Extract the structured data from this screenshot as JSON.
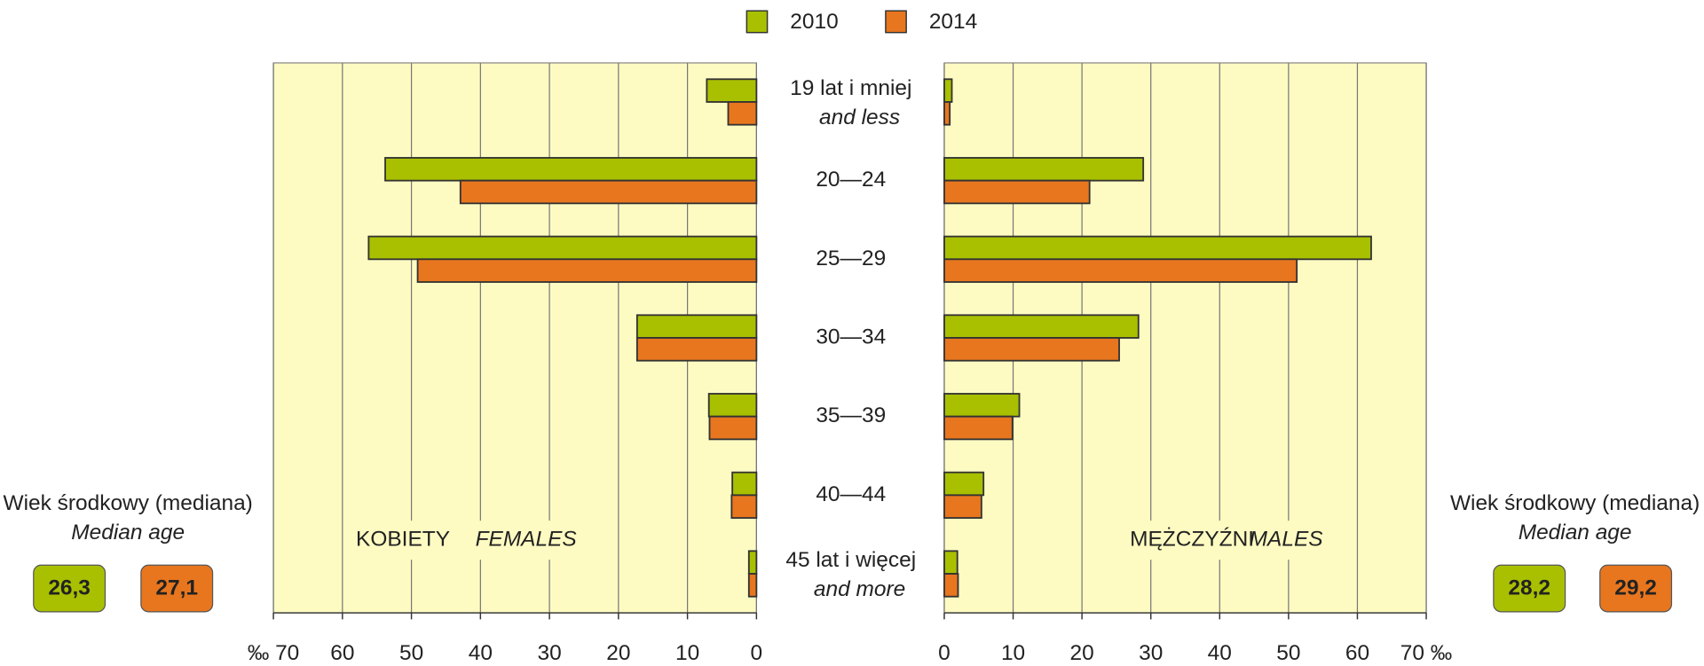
{
  "chart_data": [
    {
      "type": "bar",
      "orientation": "horizontal",
      "direction": "left",
      "label": "KOBIETY",
      "label_en": "FEMALES",
      "categories": [
        "19 lat i mniej",
        "20—24",
        "25—29",
        "30—34",
        "35—39",
        "40—44",
        "45 lat i więcej"
      ],
      "categories_en": [
        "and less",
        null,
        null,
        null,
        null,
        null,
        "and more"
      ],
      "series": [
        {
          "name": "2010",
          "color": "#a9c000",
          "values": [
            7.2,
            53.8,
            56.2,
            17.3,
            6.9,
            3.5,
            1.1
          ]
        },
        {
          "name": "2014",
          "color": "#e8761e",
          "values": [
            4.1,
            42.9,
            49.1,
            17.3,
            6.8,
            3.6,
            1.1
          ]
        }
      ],
      "xlim": [
        0,
        70
      ],
      "xticks": [
        0,
        10,
        20,
        30,
        40,
        50,
        60,
        {
          "value": 70,
          "label": "‰ 70"
        }
      ],
      "grid": true,
      "median_title": "Wiek środkowy (mediana)",
      "median_title_en": "Median age",
      "median_values": [
        26.3,
        27.1
      ],
      "median_value_labels": [
        "26,3",
        "27,1"
      ]
    },
    {
      "type": "bar",
      "orientation": "horizontal",
      "direction": "right",
      "label": "MĘŻCZYŹNI",
      "label_en": "MALES",
      "series": [
        {
          "name": "2010",
          "color": "#a9c000",
          "values": [
            1.1,
            28.9,
            62.0,
            28.2,
            10.9,
            5.7,
            1.9
          ]
        },
        {
          "name": "2014",
          "color": "#e8761e",
          "values": [
            0.8,
            21.1,
            51.2,
            25.4,
            9.9,
            5.4,
            2.0
          ]
        }
      ],
      "xlim": [
        0,
        70
      ],
      "xticks": [
        0,
        10,
        20,
        30,
        40,
        50,
        60,
        {
          "value": 70,
          "label": "70 ‰"
        }
      ],
      "grid": true,
      "median_title": "Wiek środkowy (mediana)",
      "median_title_en": "Median age",
      "median_values": [
        28.2,
        29.2
      ],
      "median_value_labels": [
        "28,2",
        "29,2"
      ]
    }
  ]
}
